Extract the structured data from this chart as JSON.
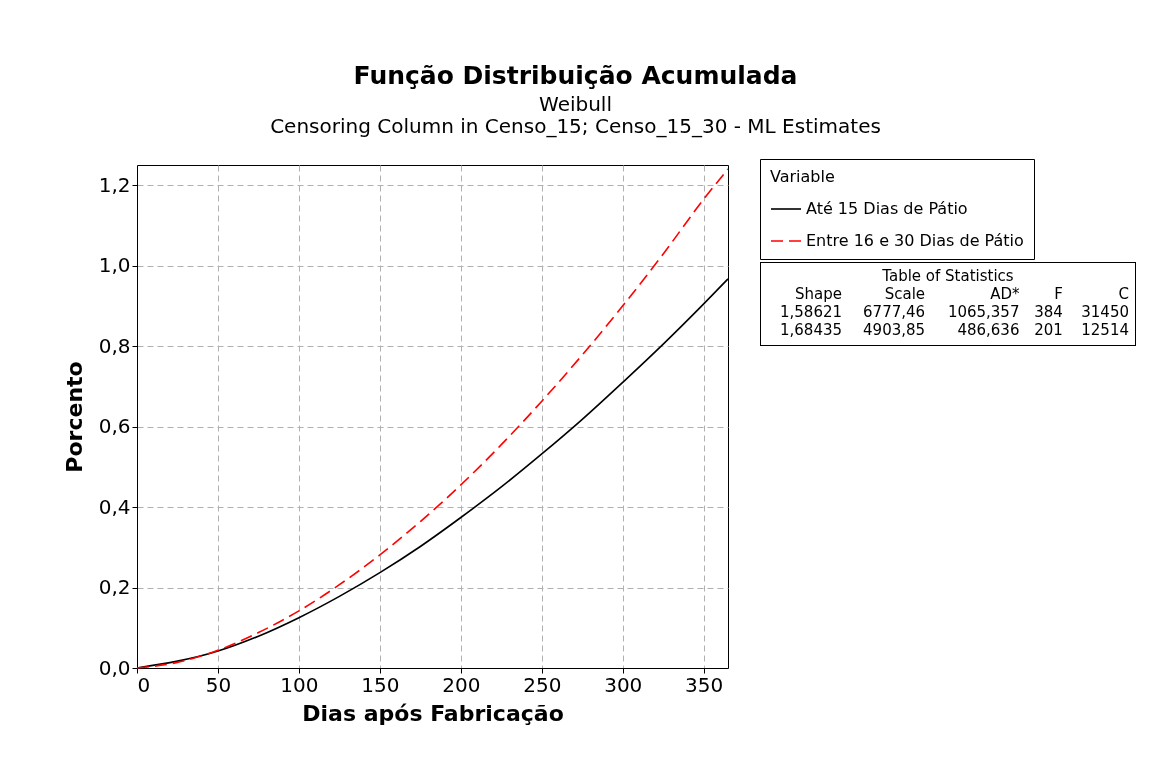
{
  "chart_data": {
    "type": "line",
    "title": "Função Distribuição Acumulada",
    "subtitle": "Weibull\nCensoring Column in Censo_15; Censo_15_30 - ML Estimates",
    "xlabel": "Dias após Fabricação",
    "ylabel": "Porcento",
    "legend_title": "Variable",
    "x": [
      0,
      25,
      50,
      75,
      100,
      125,
      150,
      175,
      200,
      225,
      250,
      275,
      300,
      325,
      350,
      365
    ],
    "series": [
      {
        "name": "Até 15 Dias de Pátio",
        "color": "#000000",
        "line_style": "solid",
        "values": [
          0,
          null,
          0.042,
          0.079,
          0.125,
          0.178,
          0.237,
          0.302,
          0.374,
          0.45,
          0.532,
          0.618,
          0.71,
          0.805,
          0.905,
          0.967
        ]
      },
      {
        "name": "Entre 16 e 30 Dias de Pátio",
        "color": "#ff0000",
        "line_style": "dashed",
        "values": [
          0,
          0.014,
          0.044,
          0.088,
          0.142,
          0.207,
          0.281,
          0.364,
          0.455,
          0.555,
          0.663,
          0.778,
          0.9,
          1.029,
          1.165,
          1.24
        ]
      }
    ],
    "xlim": [
      0,
      365
    ],
    "xticks": [
      0,
      50,
      100,
      150,
      200,
      250,
      300,
      350
    ],
    "ylim": [
      0,
      1.25
    ],
    "yticks": [
      {
        "value": 0,
        "label": "0,0"
      },
      {
        "value": 0.2,
        "label": "0,2"
      },
      {
        "value": 0.4,
        "label": "0,4"
      },
      {
        "value": 0.6,
        "label": "0,6"
      },
      {
        "value": 0.8,
        "label": "0,8"
      },
      {
        "value": 1.0,
        "label": "1,0"
      },
      {
        "value": 1.2,
        "label": "1,2"
      }
    ],
    "grid": true,
    "legend": "top right",
    "annotations": [
      "Table of Statistics",
      "Shape Scale AD* F C",
      "1,58621 6777,46 1065,357 384 31450",
      "1,68435 4903,85 486,636 201 12514"
    ]
  }
}
